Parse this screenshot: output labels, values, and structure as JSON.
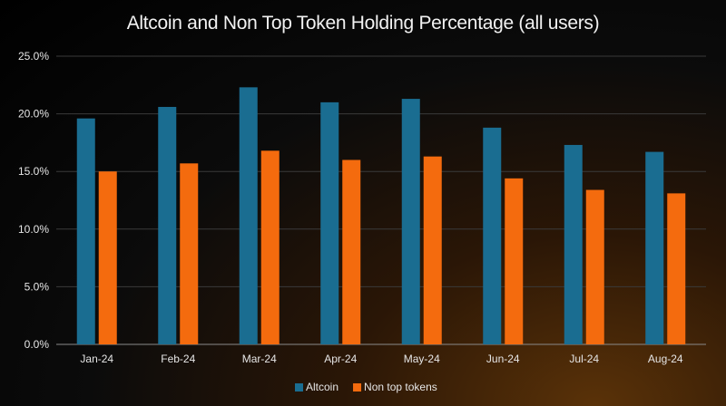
{
  "chart_data": {
    "type": "bar",
    "title": "Altcoin and Non Top Token Holding Percentage (all users)",
    "xlabel": "",
    "ylabel": "",
    "categories": [
      "Jan-24",
      "Feb-24",
      "Mar-24",
      "Apr-24",
      "May-24",
      "Jun-24",
      "Jul-24",
      "Aug-24"
    ],
    "series": [
      {
        "name": "Altcoin",
        "color": "#1a6d91",
        "values": [
          19.6,
          20.6,
          22.3,
          21.0,
          21.3,
          18.8,
          17.3,
          16.7
        ]
      },
      {
        "name": "Non top tokens",
        "color": "#f46b0e",
        "values": [
          15.0,
          15.7,
          16.8,
          16.0,
          16.3,
          14.4,
          13.4,
          13.1
        ]
      }
    ],
    "ylim": [
      0,
      25
    ],
    "yticks": [
      "0.0%",
      "5.0%",
      "10.0%",
      "15.0%",
      "20.0%",
      "25.0%"
    ],
    "ytick_values": [
      0,
      5,
      10,
      15,
      20,
      25
    ],
    "grid": true,
    "legend_position": "bottom"
  }
}
